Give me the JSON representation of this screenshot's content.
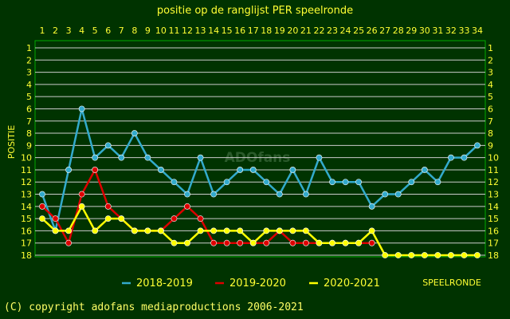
{
  "chart_data": {
    "type": "line",
    "title": "positie op de ranglijst PER speelronde",
    "ylabel": "POSITIE",
    "xlabel": "SPEELRONDE",
    "x": [
      1,
      2,
      3,
      4,
      5,
      6,
      7,
      8,
      9,
      10,
      11,
      12,
      13,
      14,
      15,
      16,
      17,
      18,
      19,
      20,
      21,
      22,
      23,
      24,
      25,
      26,
      27,
      28,
      29,
      30,
      31,
      32,
      33,
      34
    ],
    "y_ticks": [
      1,
      2,
      3,
      4,
      5,
      6,
      7,
      8,
      9,
      10,
      11,
      12,
      13,
      14,
      15,
      16,
      17,
      18
    ],
    "ylim": [
      1,
      18
    ],
    "y_inverted": true,
    "grid": true,
    "legend_position": "bottom",
    "series": [
      {
        "name": "2018-2019",
        "color": "#33aacc",
        "values": [
          13,
          16,
          11,
          6,
          10,
          9,
          10,
          8,
          10,
          11,
          12,
          13,
          10,
          13,
          12,
          11,
          11,
          12,
          13,
          11,
          13,
          10,
          12,
          12,
          12,
          14,
          13,
          13,
          12,
          11,
          12,
          10,
          10,
          9
        ]
      },
      {
        "name": "2019-2020",
        "color": "#dd0000",
        "values": [
          14,
          15,
          17,
          13,
          11,
          14,
          15,
          16,
          16,
          16,
          15,
          14,
          15,
          17,
          17,
          17,
          17,
          17,
          16,
          17,
          17,
          17,
          17,
          17,
          17,
          17,
          null,
          null,
          null,
          null,
          null,
          null,
          null,
          null
        ]
      },
      {
        "name": "2020-2021",
        "color": "#ffff00",
        "values": [
          15,
          16,
          16,
          14,
          16,
          15,
          15,
          16,
          16,
          16,
          17,
          17,
          16,
          16,
          16,
          16,
          17,
          16,
          16,
          16,
          16,
          17,
          17,
          17,
          17,
          16,
          18,
          18,
          18,
          18,
          18,
          18,
          18,
          18
        ]
      }
    ]
  },
  "watermark": "ADOfans",
  "copyright": "(C) copyright adofans mediaproductions 2006-2021"
}
